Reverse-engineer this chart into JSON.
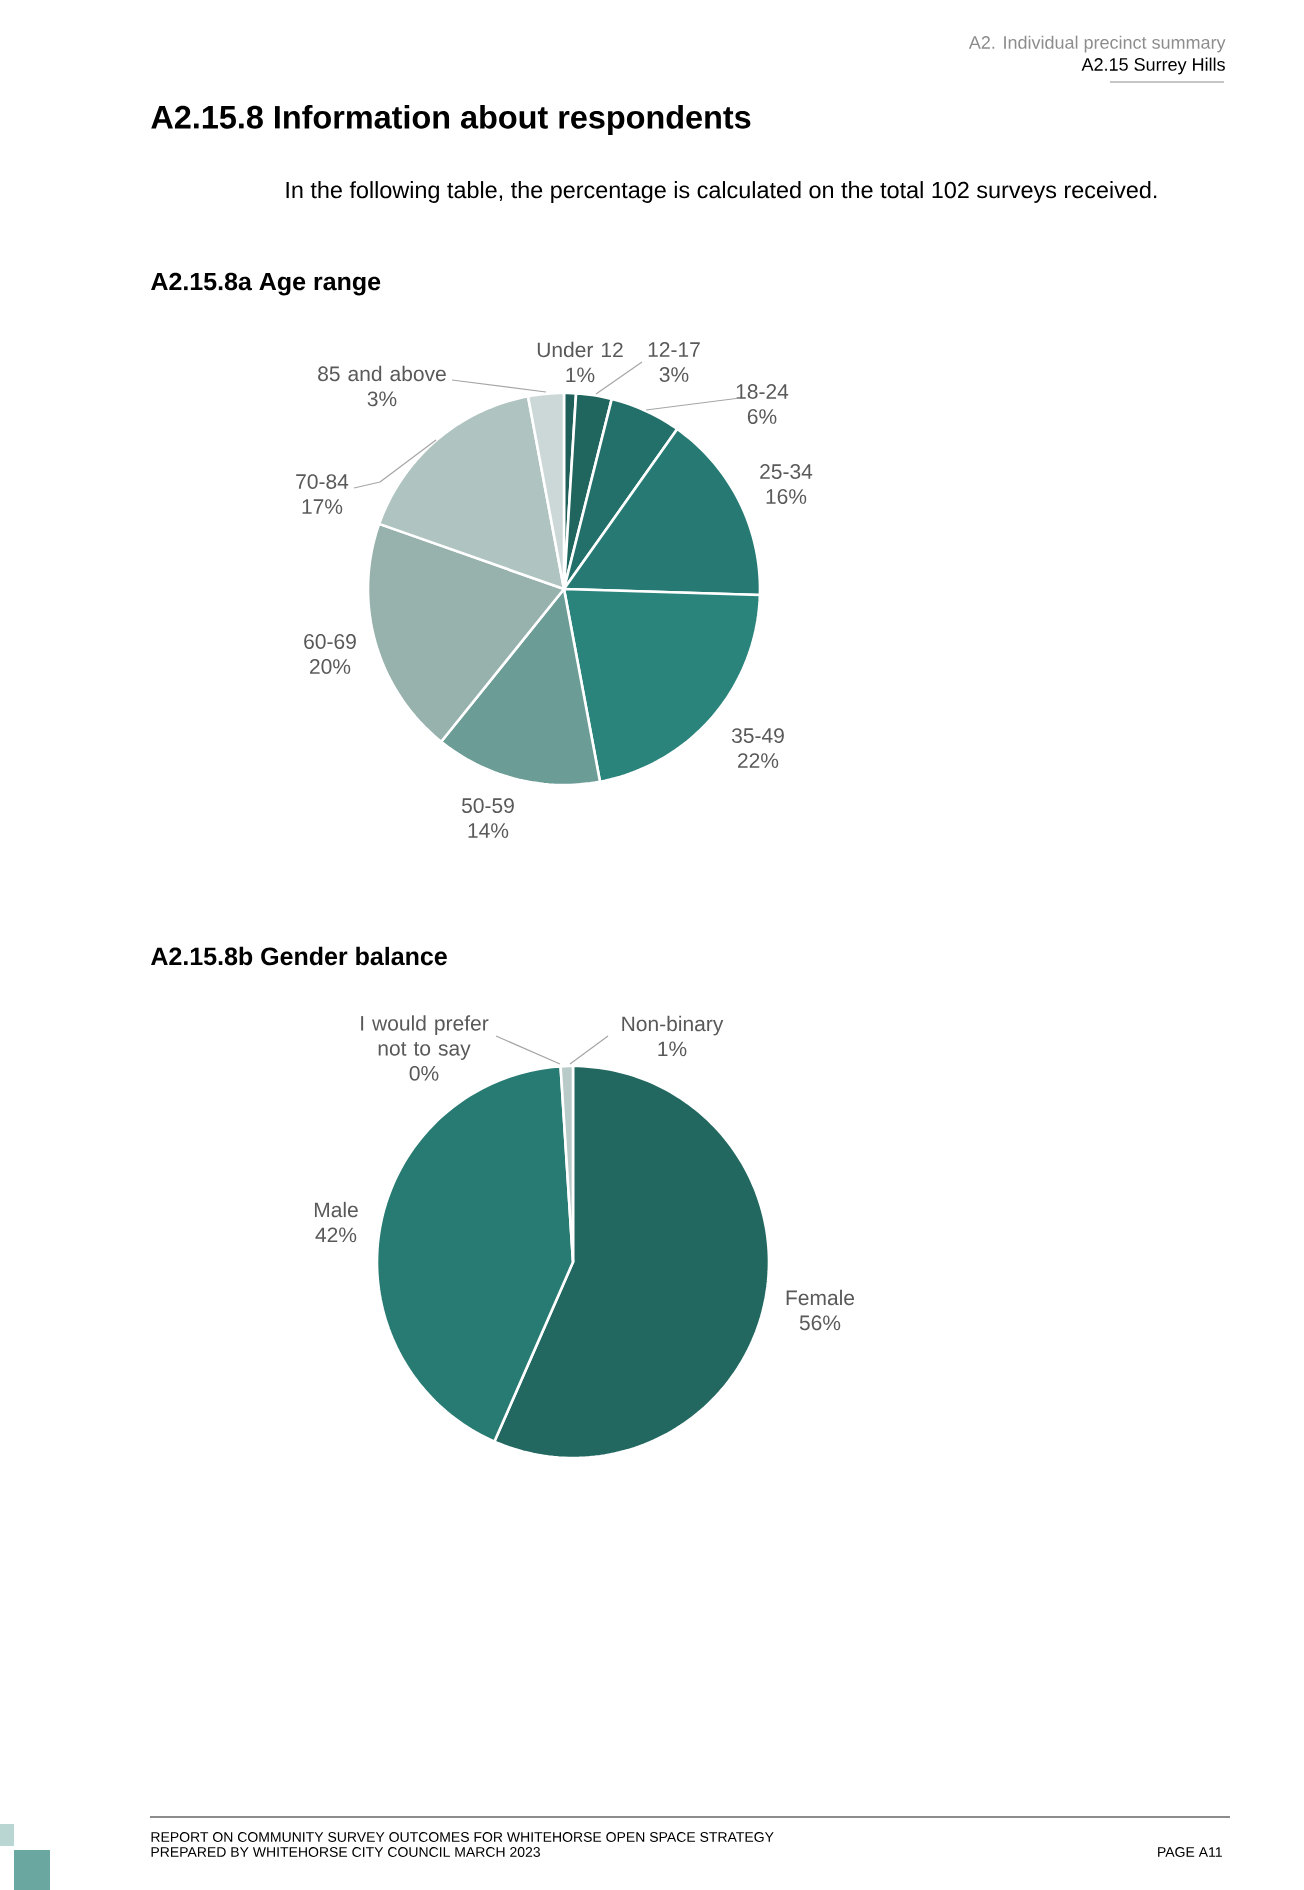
{
  "chart_data": [
    {
      "type": "pie",
      "title": "A2.15.8a Age range",
      "categories": [
        "Under 12",
        "12-17",
        "18-24",
        "25-34",
        "35-49",
        "50-59",
        "60-69",
        "70-84",
        "85 and above"
      ],
      "values": [
        1,
        3,
        6,
        16,
        22,
        14,
        20,
        17,
        3
      ],
      "colors": [
        "#1e5f59",
        "#20665f",
        "#227069",
        "#267a73",
        "#2a847c",
        "#6b9c96",
        "#97b1ad",
        "#afc4c1",
        "#cbd8d7"
      ],
      "value_labels": [
        "1%",
        "3%",
        "6%",
        "16%",
        "22%",
        "14%",
        "20%",
        "17%",
        "3%"
      ],
      "annotations": [
        "A2. Individual precinct summary",
        "A2.15 Surrey Hills",
        "A2.15.8 Information about respondents",
        "In the following table, the percentage is calculated on the total 102 surveys received."
      ]
    },
    {
      "type": "pie",
      "title": "A2.15.8b Gender balance",
      "categories": [
        "Female",
        "Male",
        "I would prefer not to say",
        "Non-binary"
      ],
      "values": [
        56,
        42,
        0,
        1
      ],
      "colors": [
        "#226860",
        "#287b73",
        null,
        "#b9cbc8"
      ],
      "value_labels": [
        "56%",
        "42%",
        "0%",
        "1%"
      ],
      "annotations": [
        "REPORT ON COMMUNITY SURVEY OUTCOMES FOR WHITEHORSE OPEN SPACE STRATEGY",
        "PREPARED BY WHITEHORSE CITY COUNCIL MARCH 2023",
        "PAGE A11"
      ]
    }
  ]
}
